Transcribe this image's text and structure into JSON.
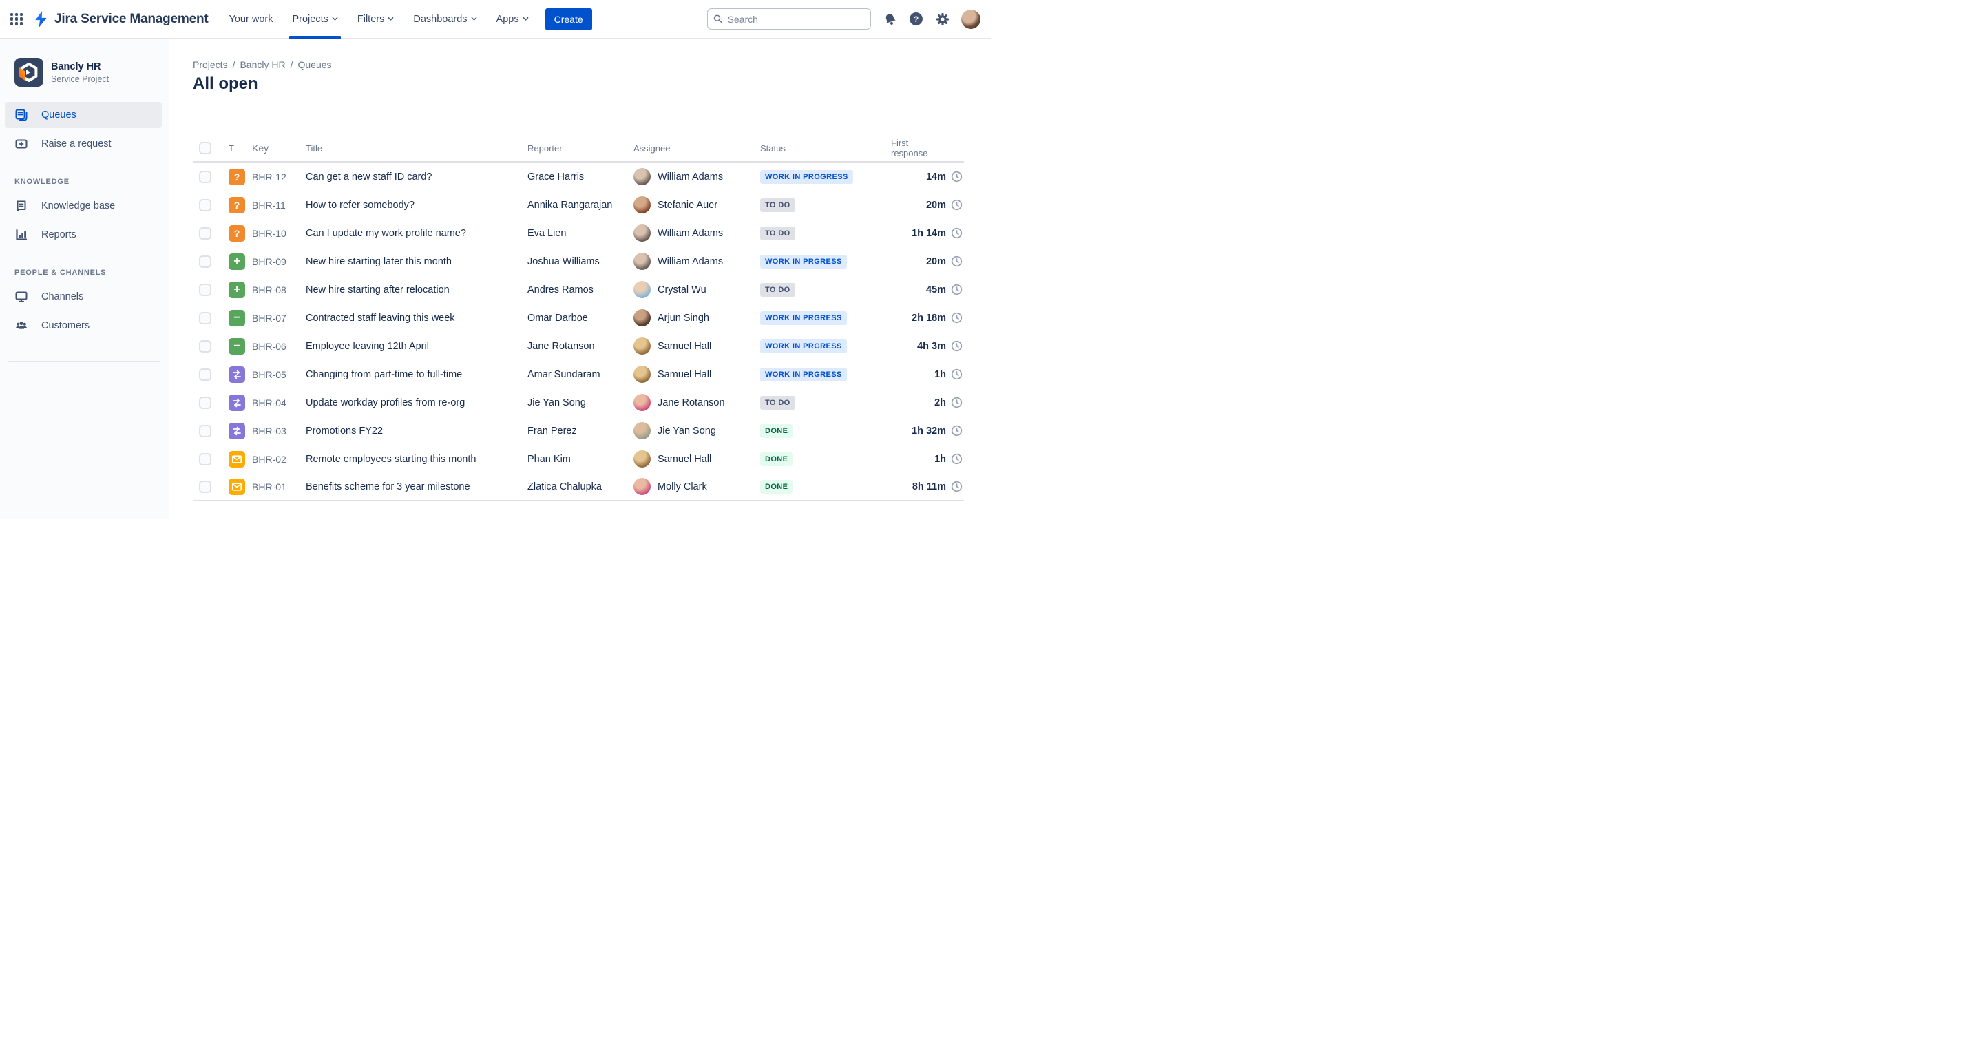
{
  "topbar": {
    "product_name": "Jira Service Management",
    "nav": [
      {
        "label": "Your work",
        "has_chevron": false,
        "active": false
      },
      {
        "label": "Projects",
        "has_chevron": true,
        "active": true
      },
      {
        "label": "Filters",
        "has_chevron": true,
        "active": false
      },
      {
        "label": "Dashboards",
        "has_chevron": true,
        "active": false
      },
      {
        "label": "Apps",
        "has_chevron": true,
        "active": false
      }
    ],
    "create_label": "Create",
    "search": {
      "placeholder": "Search"
    },
    "icons": [
      "notifications-bell-icon",
      "help-icon",
      "settings-gear-icon",
      "user-avatar"
    ]
  },
  "sidebar": {
    "project": {
      "name": "Bancly HR",
      "type": "Service Project"
    },
    "items": [
      {
        "label": "Queues",
        "icon": "queues-icon",
        "active": true
      },
      {
        "label": "Raise a request",
        "icon": "raise-request-icon",
        "active": false
      }
    ],
    "sections": [
      {
        "title": "KNOWLEDGE",
        "items": [
          {
            "label": "Knowledge base",
            "icon": "knowledge-base-icon"
          },
          {
            "label": "Reports",
            "icon": "reports-icon"
          }
        ]
      },
      {
        "title": "PEOPLE & CHANNELS",
        "items": [
          {
            "label": "Channels",
            "icon": "channels-icon"
          },
          {
            "label": "Customers",
            "icon": "customers-icon"
          }
        ]
      }
    ]
  },
  "main": {
    "breadcrumb": [
      "Projects",
      "Bancly HR",
      "Queues"
    ],
    "title": "All open",
    "table": {
      "columns": {
        "type": "T",
        "key": "Key",
        "title": "Title",
        "reporter": "Reporter",
        "assignee": "Assignee",
        "status": "Status",
        "first_response": "First response"
      },
      "rows": [
        {
          "type": "question",
          "key": "BHR-12",
          "title": "Can get a new staff ID card?",
          "reporter": "Grace Harris",
          "assignee": "William Adams",
          "status_label": "WORK IN PROGRESS",
          "status_kind": "inprogress",
          "first_response": "14m"
        },
        {
          "type": "question",
          "key": "BHR-11",
          "title": "How to refer somebody?",
          "reporter": "Annika Rangarajan",
          "assignee": "Stefanie Auer",
          "status_label": "TO DO",
          "status_kind": "todo",
          "first_response": "20m"
        },
        {
          "type": "question",
          "key": "BHR-10",
          "title": "Can I update my work profile name?",
          "reporter": "Eva Lien",
          "assignee": "William Adams",
          "status_label": "TO DO",
          "status_kind": "todo",
          "first_response": "1h 14m"
        },
        {
          "type": "add",
          "key": "BHR-09",
          "title": "New hire starting later this month",
          "reporter": "Joshua Williams",
          "assignee": "William Adams",
          "status_label": "WORK IN PRGRESS",
          "status_kind": "inprogress",
          "first_response": "20m"
        },
        {
          "type": "add",
          "key": "BHR-08",
          "title": "New hire starting after relocation",
          "reporter": "Andres Ramos",
          "assignee": "Crystal Wu",
          "status_label": "TO DO",
          "status_kind": "todo",
          "first_response": "45m"
        },
        {
          "type": "remove",
          "key": "BHR-07",
          "title": "Contracted staff leaving this week",
          "reporter": "Omar Darboe",
          "assignee": "Arjun Singh",
          "status_label": "WORK IN PRGRESS",
          "status_kind": "inprogress",
          "first_response": "2h 18m"
        },
        {
          "type": "remove",
          "key": "BHR-06",
          "title": "Employee leaving 12th April",
          "reporter": "Jane Rotanson",
          "assignee": "Samuel Hall",
          "status_label": "WORK IN PRGRESS",
          "status_kind": "inprogress",
          "first_response": "4h 3m"
        },
        {
          "type": "swap",
          "key": "BHR-05",
          "title": "Changing from part-time to full-time",
          "reporter": "Amar Sundaram",
          "assignee": "Samuel Hall",
          "status_label": "WORK IN PRGRESS",
          "status_kind": "inprogress",
          "first_response": "1h"
        },
        {
          "type": "swap",
          "key": "BHR-04",
          "title": "Update workday profiles from re-org",
          "reporter": "Jie Yan Song",
          "assignee": "Jane Rotanson",
          "status_label": "TO DO",
          "status_kind": "todo",
          "first_response": "2h"
        },
        {
          "type": "swap",
          "key": "BHR-03",
          "title": "Promotions FY22",
          "reporter": "Fran Perez",
          "assignee": "Jie Yan Song",
          "status_label": "DONE",
          "status_kind": "done",
          "first_response": "1h 32m"
        },
        {
          "type": "email",
          "key": "BHR-02",
          "title": "Remote employees starting this month",
          "reporter": "Phan Kim",
          "assignee": "Samuel Hall",
          "status_label": "DONE",
          "status_kind": "done",
          "first_response": "1h"
        },
        {
          "type": "email",
          "key": "BHR-01",
          "title": "Benefits scheme for 3 year milestone",
          "reporter": "Zlatica Chalupka",
          "assignee": "Molly Clark",
          "status_label": "DONE",
          "status_kind": "done",
          "first_response": "8h 11m"
        }
      ]
    }
  },
  "theme": {
    "accent_blue": "#0052CC",
    "badge_todo_bg": "#DFE1E6",
    "badge_todo_text": "#42526E",
    "badge_inprogress_bg": "#DEEBFF",
    "badge_inprogress_text": "#0052CC",
    "badge_done_bg": "#E3FCEF",
    "badge_done_text": "#006644",
    "type_question": "#F1892D",
    "type_new_hire": "#58A55C",
    "type_leaver": "#58A55C",
    "type_change": "#8777D9",
    "type_email": "#FFAB00"
  }
}
